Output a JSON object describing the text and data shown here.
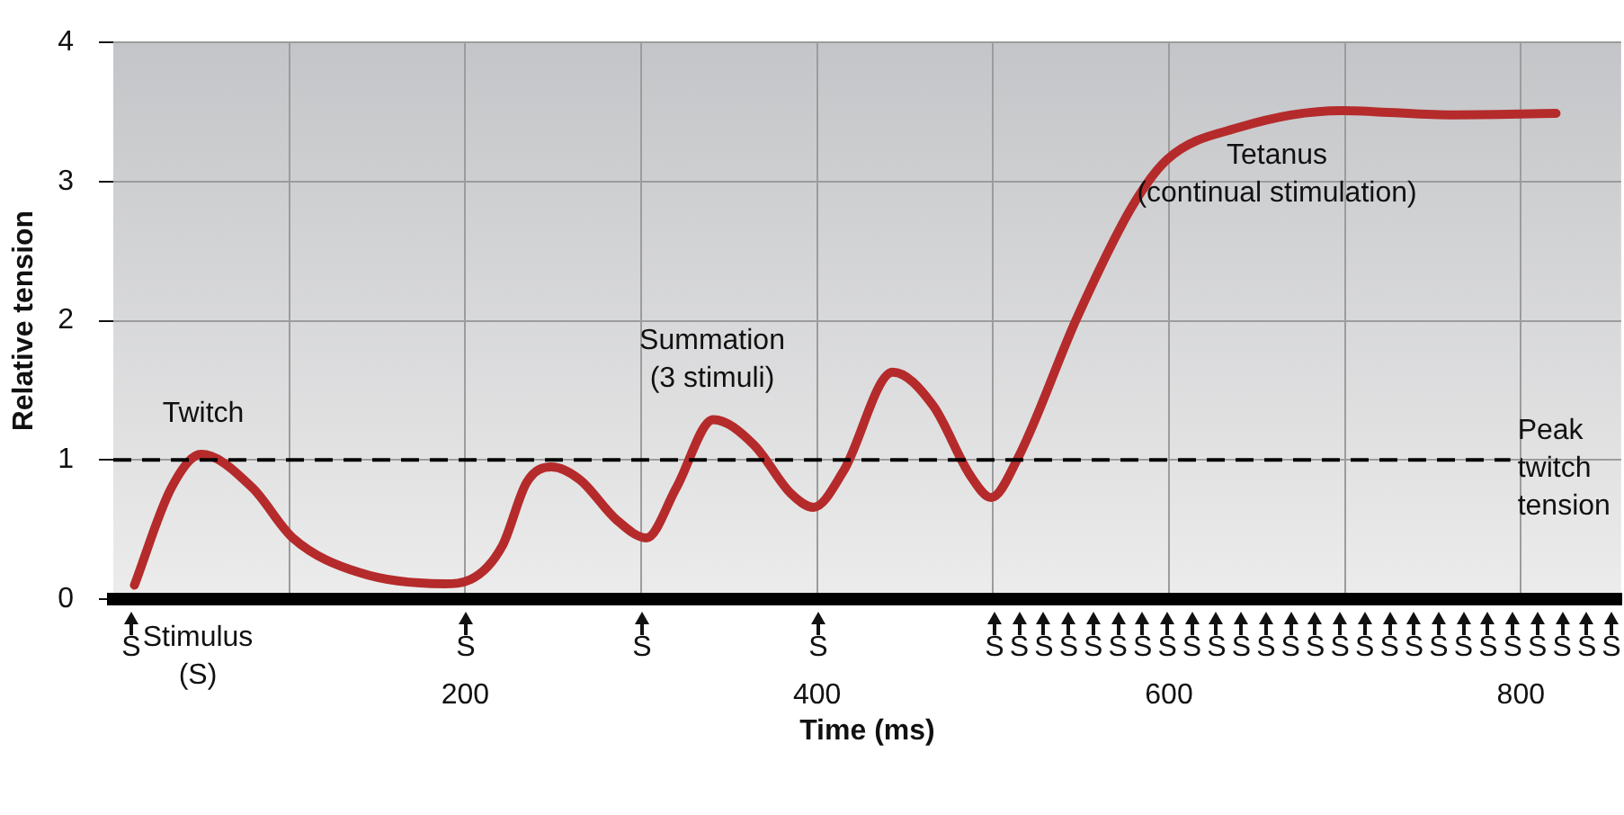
{
  "chart_data": {
    "type": "line",
    "xlabel": "Time (ms)",
    "ylabel": "Relative tension",
    "series": [
      {
        "color": "#b52b2b",
        "x": [
          12,
          33,
          50,
          79,
          102,
          140,
          188,
          203,
          221,
          235,
          249,
          265,
          286,
          303,
          320,
          341,
          364,
          385,
          398,
          415,
          443,
          466,
          487,
          499,
          514,
          548,
          579,
          599,
          640,
          698,
          759,
          820
        ],
        "values": [
          0.1,
          0.8,
          1.04,
          0.8,
          0.44,
          0.19,
          0.11,
          0.14,
          0.38,
          0.84,
          0.95,
          0.86,
          0.57,
          0.44,
          0.8,
          1.29,
          1.11,
          0.76,
          0.66,
          0.92,
          1.63,
          1.39,
          0.89,
          0.73,
          1.01,
          2.03,
          2.82,
          3.16,
          3.39,
          3.51,
          3.48,
          3.49
        ]
      }
    ],
    "xlim": [
      0,
      857
    ],
    "xticks": [
      {
        "value": 100,
        "label": null
      },
      200,
      {
        "value": 300,
        "label": null
      },
      400,
      {
        "value": 500,
        "label": null
      },
      600,
      {
        "value": 700,
        "label": null
      },
      800
    ],
    "ylim": [
      0,
      4
    ],
    "yticks": [
      0,
      1,
      2,
      3,
      4
    ],
    "grid": true,
    "marker": "none",
    "line_style": "solid",
    "ref_lines": [
      {
        "axis": "y",
        "value": 1,
        "label": "Peak\ntwitch\ntension",
        "line_style": "dashed",
        "color": "#000000"
      }
    ],
    "annotations": [
      "Twitch",
      "Summation\n(3 stimuli)",
      "Tetanus\n(continual stimulation)",
      "Stimulus\n(S)",
      "S",
      "S",
      "S",
      "S",
      "S",
      "S",
      "S",
      "S",
      "S",
      "S",
      "S",
      "S",
      "S",
      "S",
      "S",
      "S",
      "S",
      "S",
      "S",
      "S",
      "S",
      "S",
      "S",
      "S",
      "S",
      "S",
      "S",
      "S",
      "S",
      "S"
    ]
  }
}
